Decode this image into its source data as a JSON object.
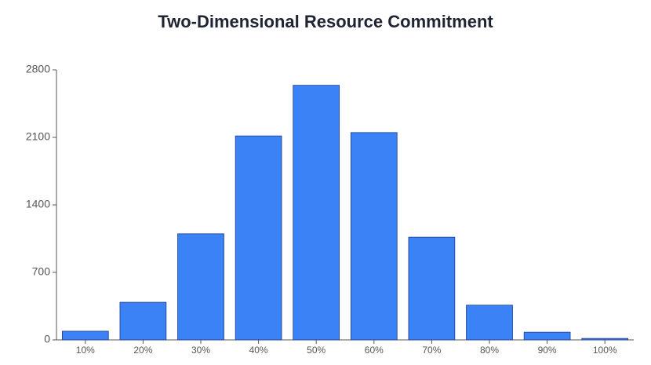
{
  "chart_data": {
    "type": "bar",
    "title": "Two-Dimensional Resource Commitment",
    "categories": [
      "10%",
      "20%",
      "30%",
      "40%",
      "50%",
      "60%",
      "70%",
      "80%",
      "90%",
      "100%"
    ],
    "values": [
      90,
      390,
      1100,
      2115,
      2640,
      2150,
      1065,
      360,
      80,
      15
    ],
    "color": "#3b82f6",
    "ylim": [
      0,
      2800
    ],
    "yticks": [
      0,
      700,
      1400,
      2100,
      2800
    ],
    "grid": false
  }
}
